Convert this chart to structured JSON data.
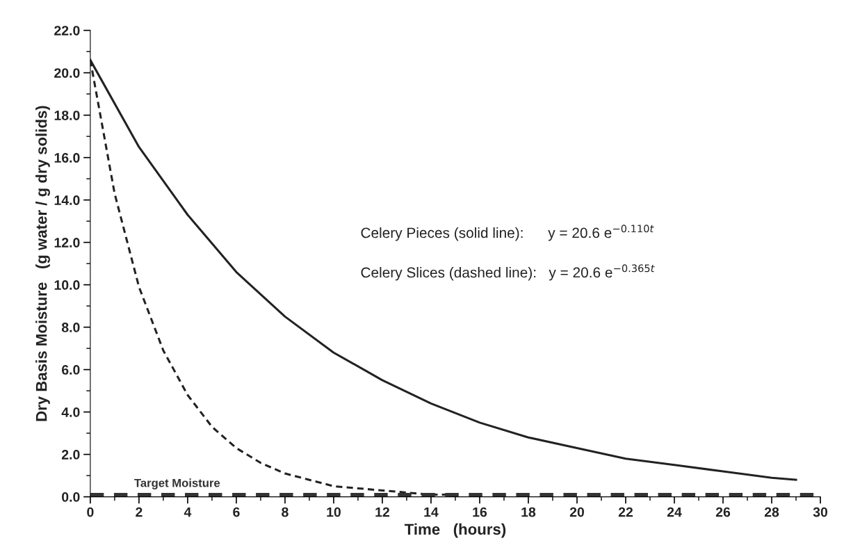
{
  "chart_data": {
    "type": "line",
    "xlabel": "Time   (hours)",
    "ylabel": "Dry Basis Moisture   (g water / g dry solids)",
    "xlim": [
      0,
      30
    ],
    "ylim": [
      0,
      22
    ],
    "xticks": [
      0,
      {
        "value": 1,
        "label": null
      },
      2,
      {
        "value": 3,
        "label": null
      },
      4,
      {
        "value": 5,
        "label": null
      },
      6,
      {
        "value": 7,
        "label": null
      },
      8,
      {
        "value": 9,
        "label": null
      },
      10,
      {
        "value": 11,
        "label": null
      },
      12,
      {
        "value": 13,
        "label": null
      },
      14,
      {
        "value": 15,
        "label": null
      },
      16,
      {
        "value": 17,
        "label": null
      },
      18,
      {
        "value": 19,
        "label": null
      },
      20,
      {
        "value": 21,
        "label": null
      },
      22,
      {
        "value": 23,
        "label": null
      },
      24,
      {
        "value": 25,
        "label": null
      },
      26,
      {
        "value": 27,
        "label": null
      },
      28,
      {
        "value": 29,
        "label": null
      },
      30
    ],
    "yticks": [
      {
        "value": 0,
        "label": "0.0"
      },
      {
        "value": 1,
        "label": null
      },
      {
        "value": 2,
        "label": "2.0"
      },
      {
        "value": 3,
        "label": null
      },
      {
        "value": 4,
        "label": "4.0"
      },
      {
        "value": 5,
        "label": null
      },
      {
        "value": 6,
        "label": "6.0"
      },
      {
        "value": 7,
        "label": null
      },
      {
        "value": 8,
        "label": "8.0"
      },
      {
        "value": 9,
        "label": null
      },
      {
        "value": 10,
        "label": "10.0"
      },
      {
        "value": 11,
        "label": null
      },
      {
        "value": 12,
        "label": "12.0"
      },
      {
        "value": 13,
        "label": null
      },
      {
        "value": 14,
        "label": "14.0"
      },
      {
        "value": 15,
        "label": null
      },
      {
        "value": 16,
        "label": "16.0"
      },
      {
        "value": 17,
        "label": null
      },
      {
        "value": 18,
        "label": "18.0"
      },
      {
        "value": 19,
        "label": null
      },
      {
        "value": 20,
        "label": "20.0"
      },
      {
        "value": 21,
        "label": null
      },
      {
        "value": 22,
        "label": "22.0"
      }
    ],
    "grid": false,
    "legend": false,
    "marker": "none",
    "series": [
      {
        "color": "#222222",
        "line_style": "solid",
        "x": [
          0,
          2,
          4,
          6,
          8,
          10,
          12,
          14,
          16,
          18,
          20,
          22,
          24,
          26,
          28,
          29
        ],
        "values": [
          20.6,
          16.5,
          13.3,
          10.6,
          8.5,
          6.8,
          5.5,
          4.4,
          3.5,
          2.8,
          2.3,
          1.8,
          1.5,
          1.2,
          0.9,
          0.8
        ]
      },
      {
        "color": "#222222",
        "line_style": "dashed",
        "x": [
          0,
          1,
          2,
          3,
          4,
          5,
          6,
          7,
          8,
          9,
          10,
          11,
          12,
          13,
          14,
          15
        ],
        "values": [
          20.6,
          14.3,
          9.9,
          6.9,
          4.8,
          3.3,
          2.3,
          1.6,
          1.1,
          0.8,
          0.5,
          0.4,
          0.3,
          0.2,
          0.1,
          0.1
        ]
      }
    ],
    "ref_lines": [
      {
        "axis": "y",
        "value": 0.1,
        "label": "Target Moisture",
        "color": "#333333",
        "line_style": "dashed"
      }
    ],
    "annotations": [
      "Celery Pieces (solid line):      y = 20.6 e$^{−0.110t}$",
      "Celery Slices (dashed line):   y = 20.6 e$^{−0.365t}$"
    ]
  }
}
